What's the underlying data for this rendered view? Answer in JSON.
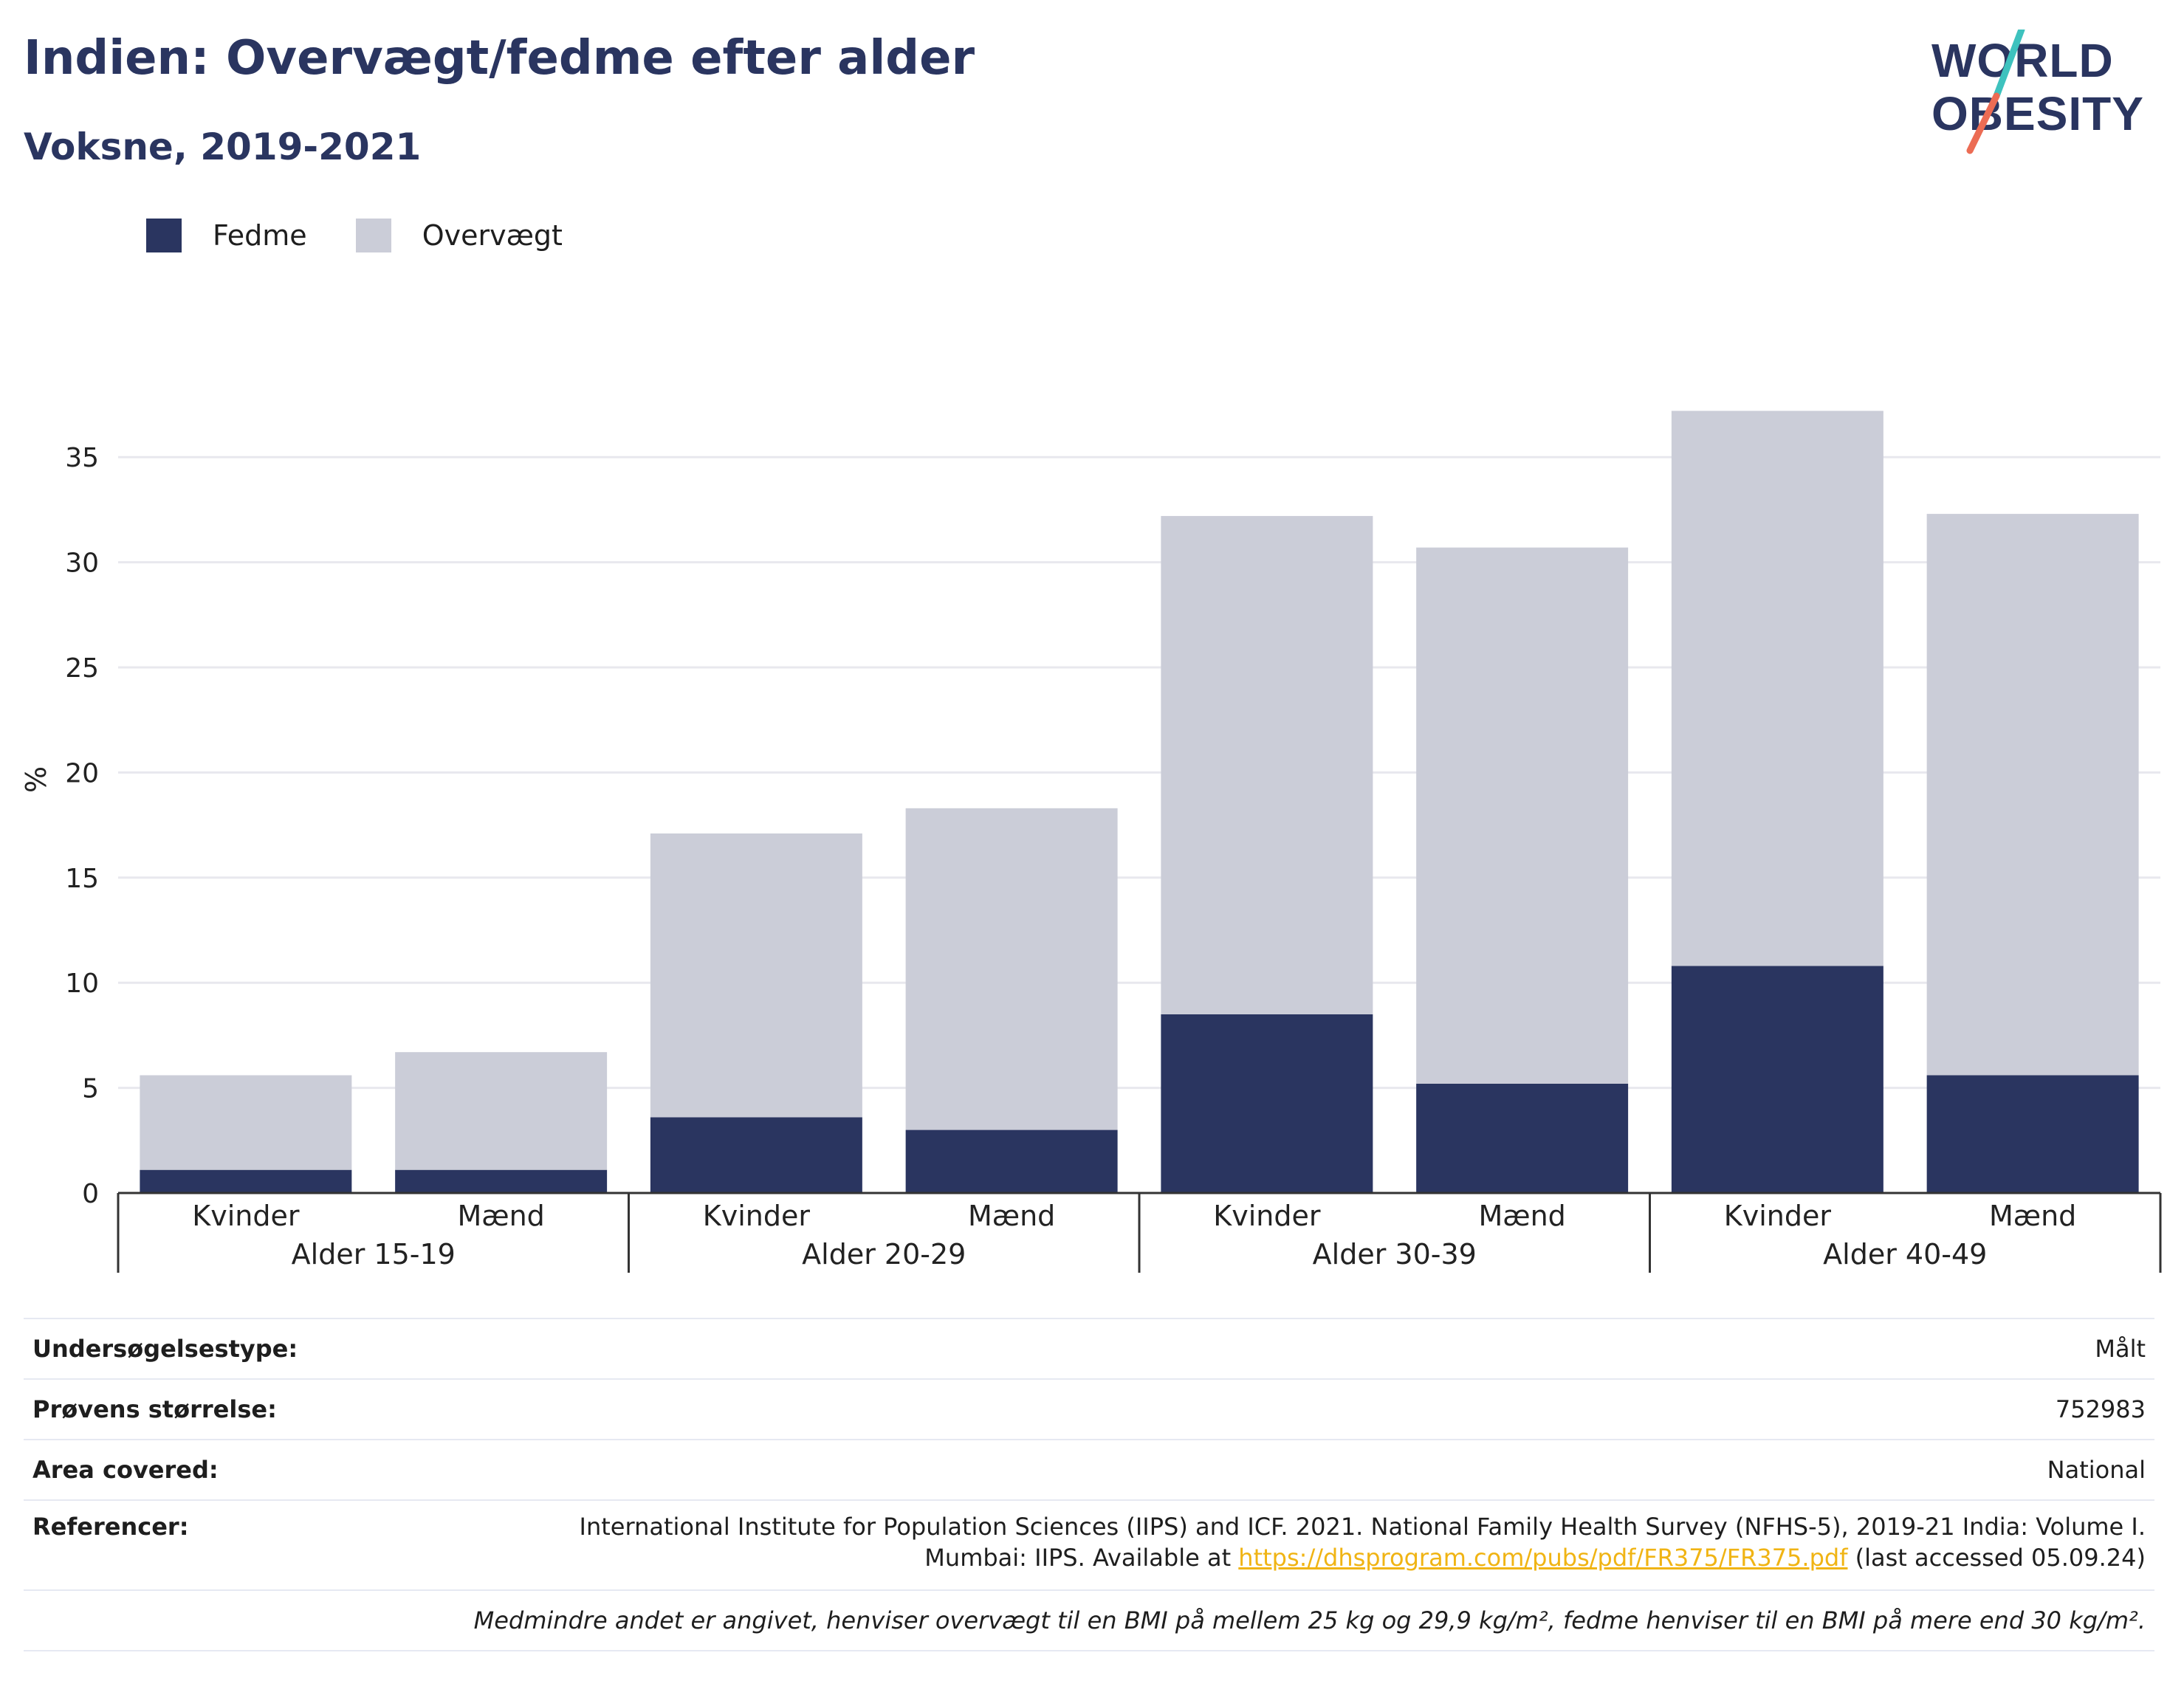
{
  "header": {
    "title": "Indien: Overvægt/fedme efter alder",
    "subtitle": "Voksne, 2019-2021"
  },
  "logo": {
    "line1": "WORLD",
    "line2": "OBESITY"
  },
  "colors": {
    "obesity": "#2a3560",
    "overweight": "#cbcdd8",
    "accent_orange": "#ec6c54",
    "accent_teal": "#3ec2be",
    "link": "#f0b414"
  },
  "chart_data": {
    "type": "bar",
    "stacked": true,
    "ylabel": "%",
    "ylim": [
      0,
      37.5
    ],
    "yticks": [
      0,
      5,
      10,
      15,
      20,
      25,
      30,
      35
    ],
    "grid": true,
    "legend_position": "top-left",
    "groups": [
      "Alder 15-19",
      "Alder 20-29",
      "Alder 30-39",
      "Alder 40-49"
    ],
    "categories": [
      "Kvinder",
      "Mænd",
      "Kvinder",
      "Mænd",
      "Kvinder",
      "Mænd",
      "Kvinder",
      "Mænd"
    ],
    "series": [
      {
        "name": "Fedme",
        "values": [
          1.1,
          1.1,
          3.6,
          3.0,
          8.5,
          5.2,
          10.8,
          5.6
        ]
      },
      {
        "name": "Overvægt",
        "values": [
          4.5,
          5.6,
          13.5,
          15.3,
          23.7,
          25.5,
          26.4,
          26.7
        ]
      }
    ]
  },
  "info": {
    "survey_type_label": "Undersøgelsestype:",
    "survey_type_value": "Målt",
    "sample_size_label": "Prøvens størrelse:",
    "sample_size_value": "752983",
    "area_label": "Area covered:",
    "area_value": "National",
    "references_label": "Referencer:",
    "references_text_1": "International Institute for Population Sciences (IIPS) and ICF. 2021. National Family Health Survey (NFHS-5), 2019-21 India: Volume I.",
    "references_text_2": "Mumbai: IIPS. Available at",
    "references_link": "https://dhsprogram.com/pubs/pdf/FR375/FR375.pdf",
    "references_text_3": "(last accessed 05.09.24)",
    "footnote": "Medmindre andet er angivet, henviser overvægt til en BMI på mellem 25 kg og 29,9 kg/m², fedme henviser til en BMI på mere end 30 kg/m²."
  }
}
